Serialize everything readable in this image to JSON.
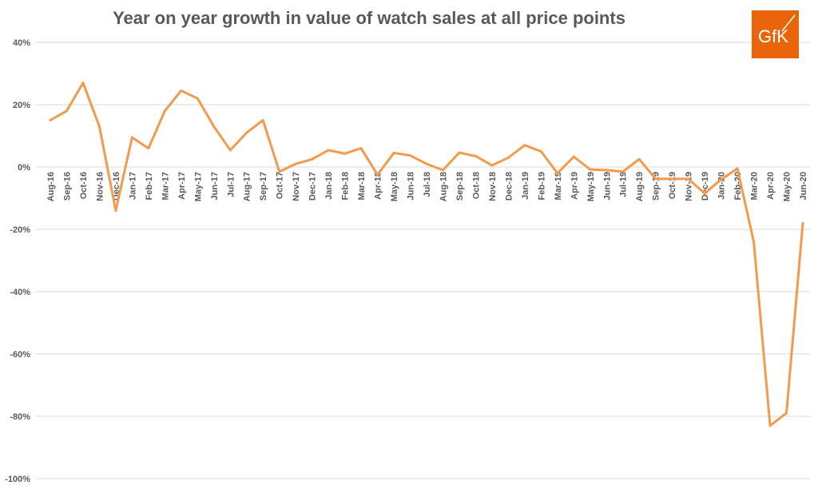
{
  "chart_data": {
    "type": "line",
    "title": "Year on year growth in value of watch sales at all price points",
    "xlabel": "",
    "ylabel": "",
    "ylim": [
      -100,
      40
    ],
    "yticks": [
      "40%",
      "20%",
      "0%",
      "-20%",
      "-40%",
      "-60%",
      "-80%",
      "-100%"
    ],
    "ytick_values": [
      40,
      20,
      0,
      -20,
      -40,
      -60,
      -80,
      -100
    ],
    "grid": true,
    "legend": "none",
    "line_color": "#F39A4C",
    "categories": [
      "Aug-16",
      "Sep-16",
      "Oct-16",
      "Nov-16",
      "Dec-16",
      "Jan-17",
      "Feb-17",
      "Mar-17",
      "Apr-17",
      "May-17",
      "Jun-17",
      "Jul-17",
      "Aug-17",
      "Sep-17",
      "Oct-17",
      "Nov-17",
      "Dec-17",
      "Jan-18",
      "Feb-18",
      "Mar-18",
      "Apr-18",
      "May-18",
      "Jun-18",
      "Jul-18",
      "Aug-18",
      "Sep-18",
      "Oct-18",
      "Nov-18",
      "Dec-18",
      "Jan-19",
      "Feb-19",
      "Mar-19",
      "Apr-19",
      "May-19",
      "Jun-19",
      "Jul-19",
      "Aug-19",
      "Sep-19",
      "Oct-19",
      "Nov-19",
      "Dec-19",
      "Jan-20",
      "Feb-20",
      "Mar-20",
      "Apr-20",
      "May-20",
      "Jun-20"
    ],
    "values": [
      15,
      18,
      27,
      13,
      -14,
      9.5,
      6,
      18,
      24.5,
      22,
      13,
      5.4,
      11,
      15,
      -1.5,
      1,
      2.5,
      5.4,
      4.3,
      6,
      -2.5,
      4.5,
      3.7,
      1,
      -1,
      4.6,
      3.5,
      0.5,
      3,
      7,
      5,
      -2,
      3.3,
      -0.8,
      -1,
      -1.5,
      2.5,
      -3.8,
      -3.8,
      -3.8,
      -8.5,
      -4,
      -0.5,
      -24,
      -83,
      -79,
      -18
    ]
  },
  "logo": {
    "text": "GfK",
    "color": "#E8650A"
  }
}
